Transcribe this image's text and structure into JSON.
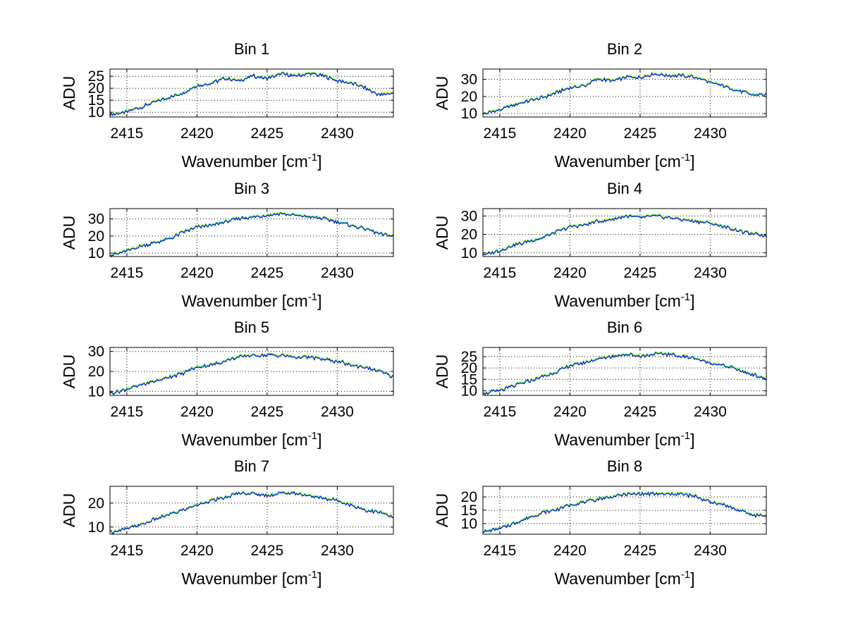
{
  "figure": {
    "background": "#ffffff"
  },
  "chart_data": [
    {
      "type": "line",
      "title": "Bin 1",
      "xlabel": "Wavenumber [cm",
      "xlabel_sup": "-1",
      "xlabel_tail": "]",
      "ylabel": "ADU",
      "xlim": [
        2413.8,
        2434
      ],
      "ylim": [
        8,
        28
      ],
      "xticks": [
        "2415",
        "2420",
        "2425",
        "2430"
      ],
      "yticks": [
        "10",
        "15",
        "20",
        "25"
      ],
      "grid": true,
      "series_colors": [
        "#ffff00",
        "#00cc99",
        "#00ccff",
        "#0000cc"
      ],
      "x": [
        2414,
        2415,
        2416,
        2417,
        2418,
        2419,
        2420,
        2421,
        2422,
        2423,
        2424,
        2425,
        2426,
        2427,
        2428,
        2429,
        2430,
        2431,
        2432,
        2433,
        2434
      ],
      "values": [
        9,
        10,
        12,
        14,
        16,
        18,
        21,
        22,
        24,
        23,
        25,
        24,
        26,
        25,
        26,
        25,
        23,
        22,
        20,
        17,
        18
      ]
    },
    {
      "type": "line",
      "title": "Bin 2",
      "xlabel": "Wavenumber [cm",
      "xlabel_sup": "-1",
      "xlabel_tail": "]",
      "ylabel": "ADU",
      "xlim": [
        2413.8,
        2434
      ],
      "ylim": [
        8,
        36
      ],
      "xticks": [
        "2415",
        "2420",
        "2425",
        "2430"
      ],
      "yticks": [
        "10",
        "20",
        "30"
      ],
      "grid": true,
      "series_colors": [
        "#ffff00",
        "#00cc99",
        "#00ccff",
        "#0000cc"
      ],
      "x": [
        2414,
        2415,
        2416,
        2417,
        2418,
        2419,
        2420,
        2421,
        2422,
        2423,
        2424,
        2425,
        2426,
        2427,
        2428,
        2429,
        2430,
        2431,
        2432,
        2433,
        2434
      ],
      "values": [
        10,
        12,
        15,
        17,
        19,
        22,
        25,
        26,
        30,
        29,
        31,
        31,
        33,
        32,
        32,
        31,
        28,
        26,
        23,
        21,
        21
      ]
    },
    {
      "type": "line",
      "title": "Bin 3",
      "xlabel": "Wavenumber [cm",
      "xlabel_sup": "-1",
      "xlabel_tail": "]",
      "ylabel": "ADU",
      "xlim": [
        2413.8,
        2434
      ],
      "ylim": [
        8,
        36
      ],
      "xticks": [
        "2415",
        "2420",
        "2425",
        "2430"
      ],
      "yticks": [
        "10",
        "20",
        "30"
      ],
      "grid": true,
      "series_colors": [
        "#ffff00",
        "#00cc99",
        "#00ccff",
        "#0000cc"
      ],
      "x": [
        2414,
        2415,
        2416,
        2417,
        2418,
        2419,
        2420,
        2421,
        2422,
        2423,
        2424,
        2425,
        2426,
        2427,
        2428,
        2429,
        2430,
        2431,
        2432,
        2433,
        2434
      ],
      "values": [
        9,
        11,
        14,
        16,
        18,
        22,
        25,
        26,
        28,
        30,
        31,
        32,
        33,
        32,
        31,
        30,
        28,
        26,
        24,
        21,
        20
      ]
    },
    {
      "type": "line",
      "title": "Bin 4",
      "xlabel": "Wavenumber [cm",
      "xlabel_sup": "-1",
      "xlabel_tail": "]",
      "ylabel": "ADU",
      "xlim": [
        2413.8,
        2434
      ],
      "ylim": [
        8,
        34
      ],
      "xticks": [
        "2415",
        "2420",
        "2425",
        "2430"
      ],
      "yticks": [
        "10",
        "20",
        "30"
      ],
      "grid": true,
      "series_colors": [
        "#ffff00",
        "#00cc99",
        "#00ccff",
        "#0000cc"
      ],
      "x": [
        2414,
        2415,
        2416,
        2417,
        2418,
        2419,
        2420,
        2421,
        2422,
        2423,
        2424,
        2425,
        2426,
        2427,
        2428,
        2429,
        2430,
        2431,
        2432,
        2433,
        2434
      ],
      "values": [
        9,
        11,
        14,
        16,
        18,
        21,
        24,
        25,
        27,
        28,
        30,
        29,
        30,
        29,
        28,
        27,
        26,
        24,
        22,
        20,
        19
      ]
    },
    {
      "type": "line",
      "title": "Bin 5",
      "xlabel": "Wavenumber [cm",
      "xlabel_sup": "-1",
      "xlabel_tail": "]",
      "ylabel": "ADU",
      "xlim": [
        2413.8,
        2434
      ],
      "ylim": [
        8,
        32
      ],
      "xticks": [
        "2415",
        "2420",
        "2425",
        "2430"
      ],
      "yticks": [
        "10",
        "20",
        "30"
      ],
      "grid": true,
      "series_colors": [
        "#ffff00",
        "#00cc99",
        "#00ccff",
        "#0000cc"
      ],
      "x": [
        2414,
        2415,
        2416,
        2417,
        2418,
        2419,
        2420,
        2421,
        2422,
        2423,
        2424,
        2425,
        2426,
        2427,
        2428,
        2429,
        2430,
        2431,
        2432,
        2433,
        2434
      ],
      "values": [
        9,
        11,
        13,
        15,
        17,
        19,
        22,
        23,
        25,
        27,
        28,
        28,
        28,
        27,
        27,
        26,
        25,
        23,
        22,
        20,
        17
      ]
    },
    {
      "type": "line",
      "title": "Bin 6",
      "xlabel": "Wavenumber [cm",
      "xlabel_sup": "-1",
      "xlabel_tail": "]",
      "ylabel": "ADU",
      "xlim": [
        2413.8,
        2434
      ],
      "ylim": [
        8,
        29
      ],
      "xticks": [
        "2415",
        "2420",
        "2425",
        "2430"
      ],
      "yticks": [
        "10",
        "15",
        "20",
        "25"
      ],
      "grid": true,
      "series_colors": [
        "#ffff00",
        "#00cc99",
        "#00ccff",
        "#0000cc"
      ],
      "x": [
        2414,
        2415,
        2416,
        2417,
        2418,
        2419,
        2420,
        2421,
        2422,
        2423,
        2424,
        2425,
        2426,
        2427,
        2428,
        2429,
        2430,
        2431,
        2432,
        2433,
        2434
      ],
      "values": [
        9,
        10,
        12,
        14,
        16,
        18,
        21,
        22,
        24,
        25,
        26,
        25,
        26,
        26,
        25,
        24,
        22,
        21,
        19,
        17,
        15
      ]
    },
    {
      "type": "line",
      "title": "Bin 7",
      "xlabel": "Wavenumber [cm",
      "xlabel_sup": "-1",
      "xlabel_tail": "]",
      "ylabel": "ADU",
      "xlim": [
        2413.8,
        2434
      ],
      "ylim": [
        7,
        27
      ],
      "xticks": [
        "2415",
        "2420",
        "2425",
        "2430"
      ],
      "yticks": [
        "10",
        "20"
      ],
      "grid": true,
      "series_colors": [
        "#ffff00",
        "#00cc99",
        "#00ccff",
        "#0000cc"
      ],
      "x": [
        2414,
        2415,
        2416,
        2417,
        2418,
        2419,
        2420,
        2421,
        2422,
        2423,
        2424,
        2425,
        2426,
        2427,
        2428,
        2429,
        2430,
        2431,
        2432,
        2433,
        2434
      ],
      "values": [
        8,
        9,
        11,
        13,
        15,
        17,
        19,
        21,
        22,
        24,
        24,
        23,
        24,
        24,
        23,
        22,
        21,
        19,
        17,
        16,
        14
      ]
    },
    {
      "type": "line",
      "title": "Bin 8",
      "xlabel": "Wavenumber [cm",
      "xlabel_sup": "-1",
      "xlabel_tail": "]",
      "ylabel": "ADU",
      "xlim": [
        2413.8,
        2434
      ],
      "ylim": [
        6,
        24
      ],
      "xticks": [
        "2415",
        "2420",
        "2425",
        "2430"
      ],
      "yticks": [
        "10",
        "15",
        "20"
      ],
      "grid": true,
      "series_colors": [
        "#ffff00",
        "#00cc99",
        "#00ccff",
        "#0000cc"
      ],
      "x": [
        2414,
        2415,
        2416,
        2417,
        2418,
        2419,
        2420,
        2421,
        2422,
        2423,
        2424,
        2425,
        2426,
        2427,
        2428,
        2429,
        2430,
        2431,
        2432,
        2433,
        2434
      ],
      "values": [
        7,
        8,
        10,
        12,
        14,
        15,
        17,
        18,
        19,
        20,
        21,
        21,
        21,
        21,
        21,
        20,
        18,
        17,
        15,
        13,
        13
      ]
    }
  ]
}
